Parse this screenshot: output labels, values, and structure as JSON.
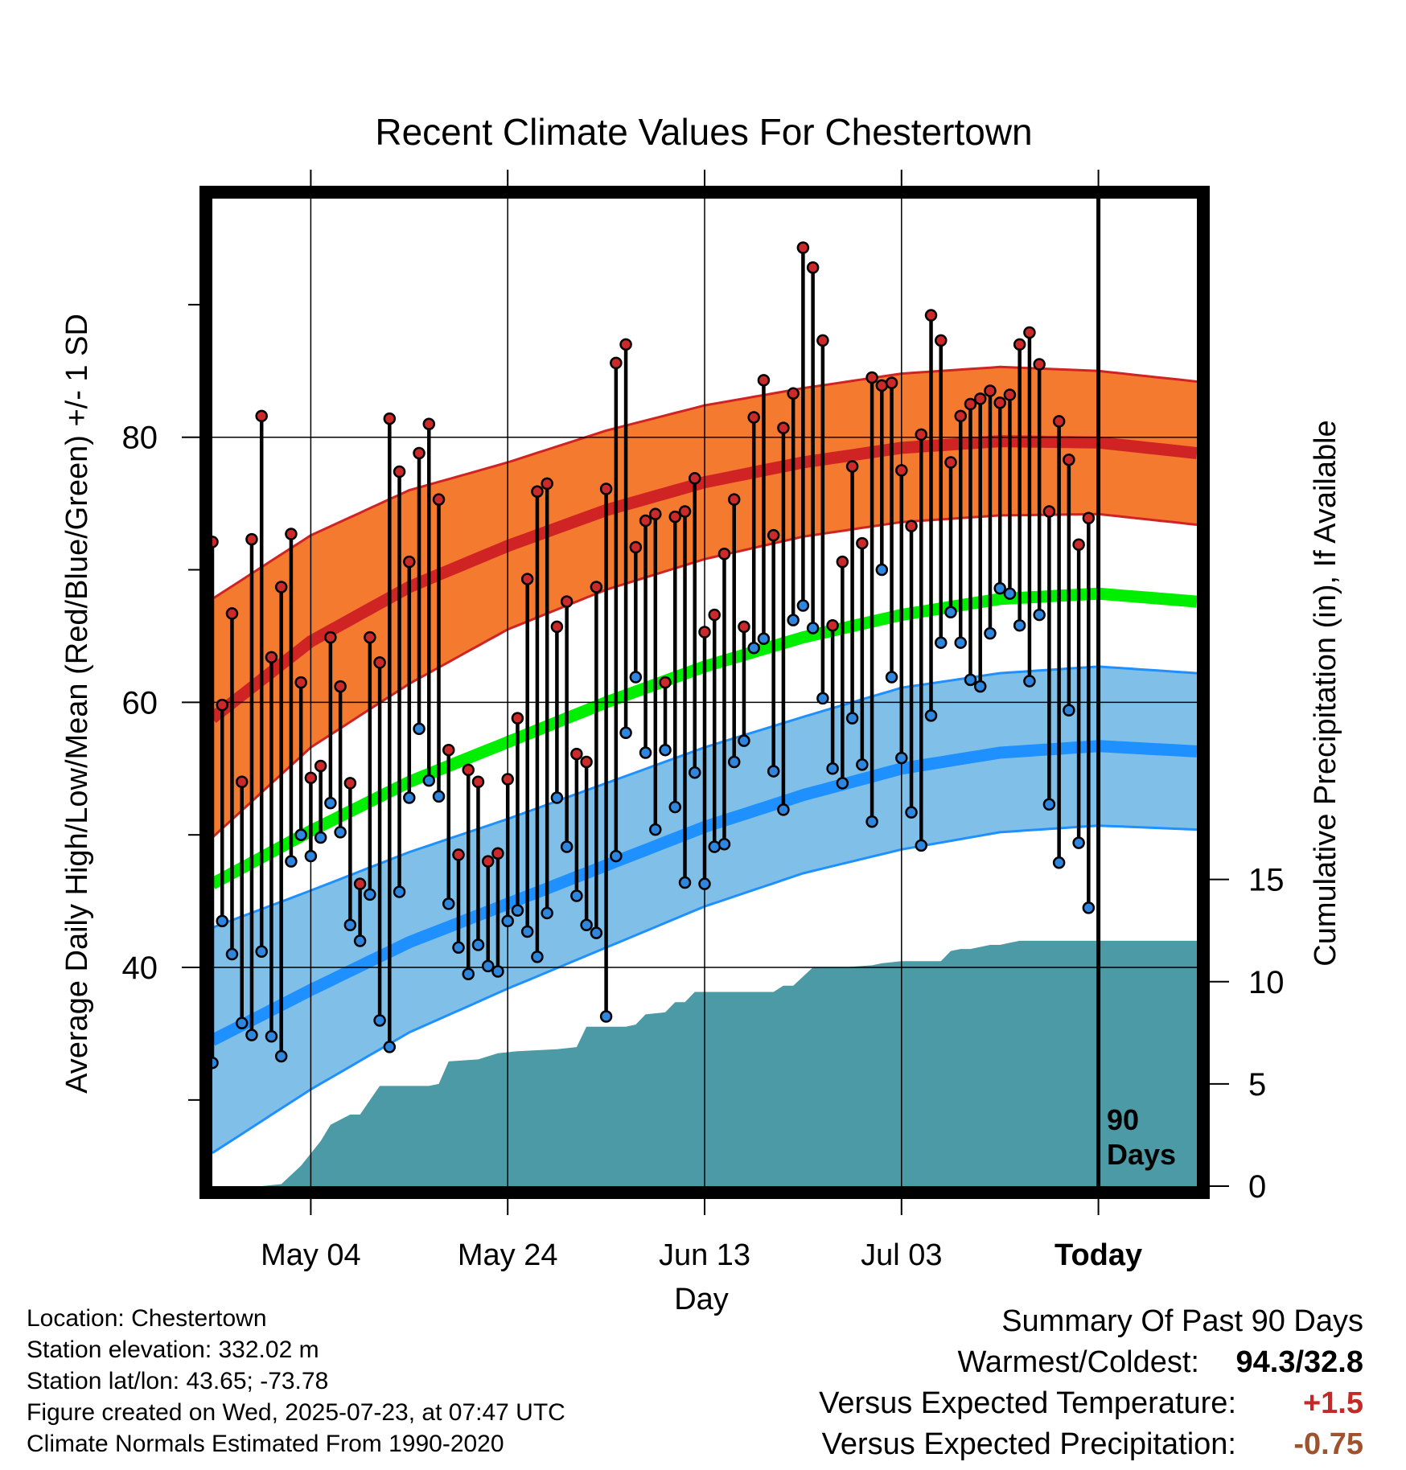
{
  "title": "Recent Climate Values For Chestertown",
  "y_left_label": "Average Daily High/Low/Mean (Red/Blue/Green) +/- 1 SD",
  "y_right_label": "Cumulative Precipitation (in), If Available",
  "x_label": "Day",
  "window_label_line1": "90",
  "window_label_line2": "Days",
  "info": {
    "location": "Location: Chestertown",
    "elevation": "Station elevation: 332.02 m",
    "latlon": "Station lat/lon: 43.65; -73.78",
    "created": "Figure created on Wed, 2025-07-23, at 07:47 UTC",
    "normals": "Climate Normals Estimated From 1990-2020"
  },
  "summary": {
    "title": "Summary Of Past 90 Days",
    "warmest_coldest_label": "Warmest/Coldest:",
    "warmest_coldest_value": "94.3/32.8",
    "temp_label": "Versus Expected Temperature:",
    "temp_value": "+1.5",
    "precip_label": "Versus Expected Precipitation:",
    "precip_value": "-0.75"
  },
  "colors": {
    "high_band": "#f47a30",
    "high_line": "#d02424",
    "mean_line": "#00ee00",
    "low_band": "#80c0e8",
    "low_line": "#1e90ff",
    "precip": "#4b9aa5",
    "high_dot": "#cc2a2a",
    "low_dot": "#2e86de"
  },
  "chart_data": {
    "type": "line",
    "x_ticks": [
      {
        "day": 10,
        "label": "May 04"
      },
      {
        "day": 30,
        "label": "May 24"
      },
      {
        "day": 50,
        "label": "Jun 13"
      },
      {
        "day": 70,
        "label": "Jul 03"
      },
      {
        "day": 90,
        "label": "Today"
      }
    ],
    "x_range": [
      0,
      100
    ],
    "y_left_range": [
      23.5,
      98
    ],
    "y_left_ticks": [
      40,
      60,
      80
    ],
    "y_left_minor_ticks": [
      30,
      50,
      70,
      90
    ],
    "y_right_range": [
      0,
      48.3
    ],
    "y_right_ticks": [
      0,
      5,
      10,
      15
    ],
    "normal_high": {
      "x": [
        0,
        10,
        20,
        30,
        40,
        50,
        60,
        70,
        80,
        90,
        100
      ],
      "mean": [
        58.8,
        64.6,
        68.7,
        71.8,
        74.5,
        76.6,
        78.1,
        79.2,
        79.7,
        79.6,
        78.8
      ],
      "sd": [
        9.0,
        8.0,
        7.3,
        6.3,
        6.0,
        5.8,
        5.6,
        5.6,
        5.6,
        5.4,
        5.4
      ]
    },
    "normal_mean": {
      "x": [
        0,
        10,
        20,
        30,
        40,
        50,
        60,
        70,
        80,
        90,
        100
      ],
      "values": [
        46.3,
        50.3,
        54.0,
        57.0,
        60.0,
        62.7,
        64.9,
        66.6,
        67.8,
        68.2,
        67.6
      ]
    },
    "normal_low": {
      "x": [
        0,
        10,
        20,
        30,
        40,
        50,
        60,
        70,
        80,
        90,
        100
      ],
      "mean": [
        34.5,
        38.3,
        41.9,
        44.8,
        47.7,
        50.6,
        53.0,
        55.0,
        56.2,
        56.7,
        56.3
      ],
      "sd": [
        8.5,
        7.5,
        6.8,
        6.4,
        6.2,
        6.0,
        5.9,
        6.1,
        6.0,
        6.0,
        5.9
      ]
    },
    "precip_cumulative": {
      "x": [
        0,
        5,
        7,
        9,
        11,
        12,
        14,
        15,
        17,
        22,
        23,
        24,
        27,
        29,
        31,
        35,
        37,
        38,
        42,
        43,
        44,
        46,
        47,
        48,
        49,
        53,
        55,
        57,
        58,
        59,
        61,
        64,
        67,
        68,
        70,
        74,
        75,
        76,
        77,
        79,
        80,
        81,
        82,
        84,
        85,
        86,
        87,
        89,
        94,
        100
      ],
      "values": [
        0,
        0,
        0.1,
        1.0,
        2.2,
        3.0,
        3.5,
        3.5,
        4.9,
        4.9,
        5.0,
        6.1,
        6.2,
        6.5,
        6.6,
        6.7,
        6.8,
        7.8,
        7.8,
        7.9,
        8.4,
        8.5,
        9.0,
        9.0,
        9.5,
        9.5,
        9.5,
        9.5,
        9.8,
        9.8,
        10.7,
        10.7,
        10.8,
        10.9,
        11.0,
        11.0,
        11.5,
        11.6,
        11.6,
        11.8,
        11.8,
        11.9,
        12.0,
        12.0,
        12.0,
        12.0,
        12.0,
        12.0,
        12.0,
        12.0
      ]
    },
    "observed": {
      "day": [
        0,
        1,
        2,
        3,
        4,
        5,
        6,
        7,
        8,
        9,
        10,
        11,
        12,
        13,
        14,
        15,
        16,
        17,
        18,
        19,
        20,
        21,
        22,
        23,
        24,
        25,
        26,
        27,
        28,
        29,
        30,
        31,
        32,
        33,
        34,
        35,
        36,
        37,
        38,
        39,
        40,
        41,
        42,
        43,
        44,
        45,
        46,
        47,
        48,
        49,
        50,
        51,
        52,
        53,
        54,
        55,
        56,
        57,
        58,
        59,
        60,
        61,
        62,
        63,
        64,
        65,
        66,
        67,
        68,
        69,
        70,
        71,
        72,
        73,
        74,
        75,
        76,
        77,
        78,
        79,
        80,
        81,
        82,
        83,
        84,
        85,
        86,
        87,
        88,
        89
      ],
      "high": [
        72.1,
        59.8,
        66.7,
        54.0,
        72.3,
        81.6,
        63.4,
        68.7,
        72.7,
        61.5,
        54.3,
        55.2,
        64.9,
        61.2,
        53.9,
        46.3,
        64.9,
        63.0,
        81.4,
        77.4,
        70.6,
        78.8,
        81.0,
        75.3,
        56.4,
        48.5,
        54.9,
        54.0,
        48.0,
        48.6,
        54.2,
        58.8,
        69.3,
        75.9,
        76.5,
        65.7,
        67.6,
        56.1,
        55.5,
        68.7,
        76.1,
        85.6,
        87.0,
        71.7,
        73.7,
        74.2,
        61.5,
        74.0,
        74.4,
        76.9,
        65.3,
        66.6,
        71.2,
        75.3,
        65.7,
        81.5,
        84.3,
        72.6,
        80.7,
        83.3,
        94.3,
        92.8,
        87.3,
        65.8,
        70.6,
        77.8,
        72.0,
        84.5,
        83.9,
        84.1,
        77.5,
        73.3,
        80.2,
        89.2,
        87.3,
        78.1,
        81.6,
        82.5,
        82.9,
        83.5,
        82.6,
        83.2,
        87.0,
        87.9,
        85.5,
        74.4,
        81.2,
        78.3,
        71.9,
        73.9
      ],
      "low": [
        32.8,
        43.5,
        41.0,
        35.8,
        34.9,
        41.2,
        34.8,
        33.3,
        48.0,
        50.0,
        48.4,
        49.8,
        52.4,
        50.2,
        43.2,
        42.0,
        45.5,
        36.0,
        34.0,
        45.7,
        52.8,
        58.0,
        54.1,
        52.9,
        44.8,
        41.5,
        39.5,
        41.7,
        40.1,
        39.7,
        43.5,
        44.3,
        42.7,
        40.8,
        44.1,
        52.8,
        49.1,
        45.4,
        43.2,
        42.6,
        36.3,
        48.4,
        57.7,
        61.9,
        56.2,
        50.4,
        56.4,
        52.1,
        46.4,
        54.7,
        46.3,
        49.1,
        49.3,
        55.5,
        57.1,
        64.1,
        64.8,
        54.8,
        51.9,
        66.2,
        67.3,
        65.6,
        60.3,
        55.0,
        53.9,
        58.8,
        55.3,
        51.0,
        70.0,
        61.9,
        55.8,
        51.7,
        49.2,
        59.0,
        64.5,
        66.8,
        64.5,
        61.7,
        61.2,
        65.2,
        68.6,
        68.2,
        65.8,
        61.6,
        66.6,
        52.3,
        47.9,
        59.4,
        49.4,
        44.5
      ]
    }
  }
}
